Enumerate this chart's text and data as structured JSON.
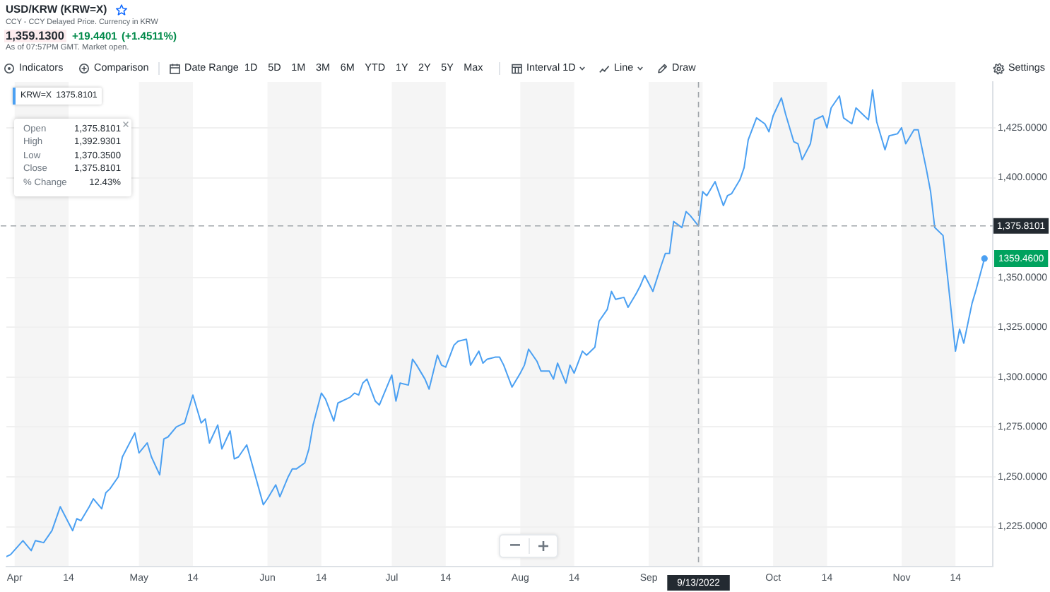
{
  "chart_data": {
    "type": "line",
    "title": "USD/KRW (KRW=X)",
    "subtitle": "CCY - CCY Delayed Price. Currency in KRW",
    "annotations": [
      "1,359.1300",
      "+19.4401",
      "(+1.4511%)",
      "As of 07:57PM GMT. Market open.",
      "Indicators",
      "Comparison",
      "Date Range",
      "1D 5D 1M 3M 6M YTD 1Y 2Y 5Y Max",
      "Interval 1D",
      "Line",
      "Draw",
      "Settings",
      "1375.8101",
      "Open",
      "1,375.8101",
      "High",
      "1,392.9301",
      "Low",
      "1,370.3500",
      "Close",
      "1,375.8101",
      "% Change",
      "12.43%",
      {
        "text": "1359.4600",
        "x": "2022-11-21",
        "y": 1359.46
      }
    ],
    "x": [
      "2022-03-30",
      "2022-03-31",
      "2022-04-03",
      "2022-04-05",
      "2022-04-06",
      "2022-04-08",
      "2022-04-10",
      "2022-04-12",
      "2022-04-15",
      "2022-04-16",
      "2022-04-17",
      "2022-04-19",
      "2022-04-20",
      "2022-04-22",
      "2022-04-23",
      "2022-04-24",
      "2022-04-26",
      "2022-04-27",
      "2022-04-30",
      "2022-05-01",
      "2022-05-03",
      "2022-05-04",
      "2022-05-06",
      "2022-05-07",
      "2022-05-08",
      "2022-05-10",
      "2022-05-12",
      "2022-05-14",
      "2022-05-16",
      "2022-05-17",
      "2022-05-18",
      "2022-05-20",
      "2022-05-21",
      "2022-05-23",
      "2022-05-24",
      "2022-05-25",
      "2022-05-27",
      "2022-05-29",
      "2022-05-31",
      "2022-06-01",
      "2022-06-03",
      "2022-06-04",
      "2022-06-06",
      "2022-06-07",
      "2022-06-08",
      "2022-06-10",
      "2022-06-11",
      "2022-06-12",
      "2022-06-14",
      "2022-06-15",
      "2022-06-17",
      "2022-06-18",
      "2022-06-21",
      "2022-06-22",
      "2022-06-23",
      "2022-06-24",
      "2022-06-25",
      "2022-06-27",
      "2022-06-28",
      "2022-06-29",
      "2022-07-01",
      "2022-07-02",
      "2022-07-03",
      "2022-07-05",
      "2022-07-06",
      "2022-07-07",
      "2022-07-09",
      "2022-07-10",
      "2022-07-12",
      "2022-07-13",
      "2022-07-14",
      "2022-07-16",
      "2022-07-17",
      "2022-07-19",
      "2022-07-20",
      "2022-07-22",
      "2022-07-23",
      "2022-07-24",
      "2022-07-26",
      "2022-07-27",
      "2022-07-28",
      "2022-07-30",
      "2022-08-01",
      "2022-08-02",
      "2022-08-03",
      "2022-08-05",
      "2022-08-06",
      "2022-08-08",
      "2022-08-09",
      "2022-08-10",
      "2022-08-12",
      "2022-08-13",
      "2022-08-14",
      "2022-08-16",
      "2022-08-17",
      "2022-08-19",
      "2022-08-20",
      "2022-08-22",
      "2022-08-23",
      "2022-08-24",
      "2022-08-26",
      "2022-08-27",
      "2022-08-29",
      "2022-08-30",
      "2022-08-31",
      "2022-09-02",
      "2022-09-04",
      "2022-09-05",
      "2022-09-06",
      "2022-09-07",
      "2022-09-09",
      "2022-09-10",
      "2022-09-11",
      "2022-09-13",
      "2022-09-14",
      "2022-09-15",
      "2022-09-17",
      "2022-09-19",
      "2022-09-20",
      "2022-09-21",
      "2022-09-23",
      "2022-09-24",
      "2022-09-25",
      "2022-09-27",
      "2022-09-29",
      "2022-09-30",
      "2022-10-01",
      "2022-10-03",
      "2022-10-04",
      "2022-10-06",
      "2022-10-07",
      "2022-10-08",
      "2022-10-10",
      "2022-10-11",
      "2022-10-13",
      "2022-10-14",
      "2022-10-15",
      "2022-10-17",
      "2022-10-18",
      "2022-10-20",
      "2022-10-21",
      "2022-10-23",
      "2022-10-24",
      "2022-10-25",
      "2022-10-26",
      "2022-10-28",
      "2022-10-29",
      "2022-10-31",
      "2022-11-01",
      "2022-11-02",
      "2022-11-04",
      "2022-11-05",
      "2022-11-07",
      "2022-11-08",
      "2022-11-09",
      "2022-11-11",
      "2022-11-12",
      "2022-11-14",
      "2022-11-15",
      "2022-11-16",
      "2022-11-18",
      "2022-11-19",
      "2022-11-21"
    ],
    "series": [
      {
        "name": "KRW=X",
        "color": "#4ba0f2",
        "values": [
          1210,
          1211,
          1218,
          1213,
          1218,
          1217,
          1223,
          1235,
          1223,
          1229,
          1228,
          1235,
          1239,
          1234,
          1242,
          1244,
          1250,
          1260,
          1272,
          1262,
          1267,
          1260,
          1251,
          1269,
          1270,
          1275,
          1277,
          1291,
          1277,
          1279,
          1267,
          1276,
          1264,
          1273,
          1259,
          1260,
          1266,
          1251,
          1236,
          1239,
          1246,
          1240,
          1250,
          1254,
          1254,
          1257,
          1264,
          1276,
          1292,
          1289,
          1278,
          1287,
          1290,
          1292,
          1291,
          1297,
          1299,
          1288,
          1286,
          1291,
          1301,
          1288,
          1297,
          1296,
          1309,
          1306,
          1299,
          1294,
          1311,
          1306,
          1305,
          1316,
          1318,
          1319,
          1306,
          1313,
          1307,
          1309,
          1310,
          1310,
          1306,
          1295,
          1302,
          1306,
          1314,
          1308,
          1303,
          1303,
          1299,
          1307,
          1297,
          1306,
          1302,
          1313,
          1311,
          1315,
          1328,
          1334,
          1343,
          1339,
          1340,
          1335,
          1342,
          1346,
          1351,
          1343,
          1356,
          1362,
          1362,
          1378,
          1375,
          1383,
          1381,
          1375.8101,
          1393,
          1391,
          1398,
          1386,
          1391,
          1392,
          1399,
          1405,
          1419,
          1430,
          1427,
          1423,
          1431,
          1440,
          1432,
          1418,
          1417,
          1409,
          1417,
          1429,
          1431,
          1425,
          1435,
          1441,
          1430,
          1427,
          1435,
          1431,
          1429,
          1444,
          1428,
          1414,
          1421,
          1422,
          1425,
          1417,
          1424,
          1424,
          1404,
          1393,
          1375,
          1371,
          1352,
          1313,
          1324,
          1317,
          1337,
          1344,
          1359.46
        ]
      }
    ],
    "xlim": [
      "2022-03-30",
      "2022-11-23"
    ],
    "xticks": [
      {
        "value": "2022-04-01",
        "label": "Apr"
      },
      {
        "value": "2022-04-14",
        "label": "14"
      },
      {
        "value": "2022-05-01",
        "label": "May"
      },
      {
        "value": "2022-05-14",
        "label": "14"
      },
      {
        "value": "2022-06-01",
        "label": "Jun"
      },
      {
        "value": "2022-06-14",
        "label": "14"
      },
      {
        "value": "2022-07-01",
        "label": "Jul"
      },
      {
        "value": "2022-07-14",
        "label": "14"
      },
      {
        "value": "2022-08-01",
        "label": "Aug"
      },
      {
        "value": "2022-08-14",
        "label": "14"
      },
      {
        "value": "2022-09-01",
        "label": "Sep"
      },
      {
        "value": "2022-10-01",
        "label": "Oct"
      },
      {
        "value": "2022-10-14",
        "label": "14"
      },
      {
        "value": "2022-11-01",
        "label": "Nov"
      },
      {
        "value": "2022-11-14",
        "label": "14"
      }
    ],
    "ylim": [
      1205,
      1448
    ],
    "yticks": [
      {
        "value": 1225,
        "label": "1,225.0000"
      },
      {
        "value": 1250,
        "label": "1,250.0000"
      },
      {
        "value": 1275,
        "label": "1,275.0000"
      },
      {
        "value": 1300,
        "label": "1,300.0000"
      },
      {
        "value": 1325,
        "label": "1,325.0000"
      },
      {
        "value": 1350,
        "label": "1,350.0000"
      },
      {
        "value": 1400,
        "label": "1,400.0000"
      },
      {
        "value": 1425,
        "label": "1,425.0000"
      }
    ],
    "bands": [
      {
        "axis": "x",
        "from": "2022-04-01",
        "to": "2022-04-14",
        "color": "#f5f5f5"
      },
      {
        "axis": "x",
        "from": "2022-05-01",
        "to": "2022-05-14",
        "color": "#f5f5f5"
      },
      {
        "axis": "x",
        "from": "2022-06-01",
        "to": "2022-06-14",
        "color": "#f5f5f5"
      },
      {
        "axis": "x",
        "from": "2022-07-01",
        "to": "2022-07-14",
        "color": "#f5f5f5"
      },
      {
        "axis": "x",
        "from": "2022-08-01",
        "to": "2022-08-14",
        "color": "#f5f5f5"
      },
      {
        "axis": "x",
        "from": "2022-09-01",
        "to": "2022-09-14",
        "color": "#f5f5f5"
      },
      {
        "axis": "x",
        "from": "2022-10-01",
        "to": "2022-10-14",
        "color": "#f5f5f5"
      },
      {
        "axis": "x",
        "from": "2022-11-01",
        "to": "2022-11-14",
        "color": "#f5f5f5"
      }
    ],
    "ref_lines": [
      {
        "axis": "x",
        "value": "2022-09-13",
        "label": "9/13/2022",
        "color": "#a0a5aa",
        "line_style": "dashed"
      },
      {
        "axis": "y",
        "value": 1375.8101,
        "label": "1,375.8101",
        "color": "#a0a5aa",
        "line_style": "dashed"
      }
    ],
    "grid": "y",
    "legend": "top left",
    "marker": "none"
  }
}
